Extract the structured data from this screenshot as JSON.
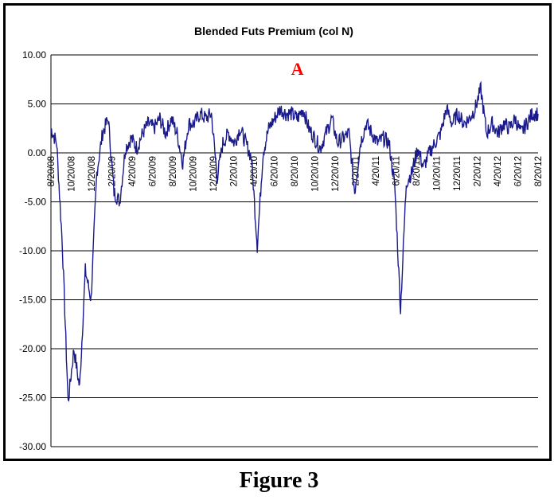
{
  "caption": "Figure 3",
  "chart_data": {
    "type": "line",
    "title": "Blended Futs Premium (col N)",
    "xlabel": "",
    "ylabel": "",
    "ylim": [
      -30,
      10
    ],
    "yticks": [
      "10.00",
      "5.00",
      "0.00",
      "-5.00",
      "-10.00",
      "-15.00",
      "-20.00",
      "-25.00",
      "-30.00"
    ],
    "xticks": [
      "8/20/08",
      "10/20/08",
      "12/20/08",
      "2/20/09",
      "4/20/09",
      "6/20/09",
      "8/20/09",
      "10/20/09",
      "12/20/09",
      "2/20/10",
      "4/20/10",
      "6/20/10",
      "8/20/10",
      "10/20/10",
      "12/20/10",
      "2/20/11",
      "4/20/11",
      "6/20/11",
      "8/20/11",
      "10/20/11",
      "12/20/11",
      "2/20/12",
      "4/20/12",
      "6/20/12",
      "8/20/12"
    ],
    "grid": true,
    "legend": "none",
    "line_color": "#1a1a8c",
    "annotation": {
      "text": "A",
      "color": "#ff0000",
      "at_x_index": 43,
      "at_y": 6.5
    },
    "series": [
      {
        "x_step_months": 0.5,
        "values": [
          2.5,
          1.0,
          -9.5,
          -25.5,
          -20.0,
          -24.0,
          -12.0,
          -15.0,
          -2.0,
          2.0,
          3.5,
          -4.0,
          -5.0,
          0.5,
          1.5,
          0.5,
          2.0,
          3.0,
          2.5,
          3.5,
          2.0,
          3.5,
          2.0,
          -1.0,
          3.0,
          3.0,
          4.0,
          3.5,
          4.0,
          -2.5,
          1.0,
          2.0,
          1.0,
          2.5,
          1.0,
          -0.5,
          -9.5,
          0.0,
          2.5,
          3.5,
          4.5,
          4.0,
          4.0,
          3.5,
          4.5,
          2.5,
          1.5,
          0.5,
          2.0,
          3.5,
          1.0,
          1.5,
          2.0,
          -4.0,
          1.0,
          3.0,
          2.0,
          1.0,
          1.5,
          1.0,
          -3.5,
          -16.0,
          -3.0,
          -2.0,
          0.5,
          -1.5,
          0.0,
          1.0,
          2.0,
          4.5,
          3.0,
          4.0,
          3.0,
          3.5,
          4.5,
          6.5,
          2.0,
          3.0,
          2.0,
          3.0,
          2.5,
          3.5,
          2.0,
          3.0,
          4.0,
          4.0
        ]
      }
    ]
  }
}
